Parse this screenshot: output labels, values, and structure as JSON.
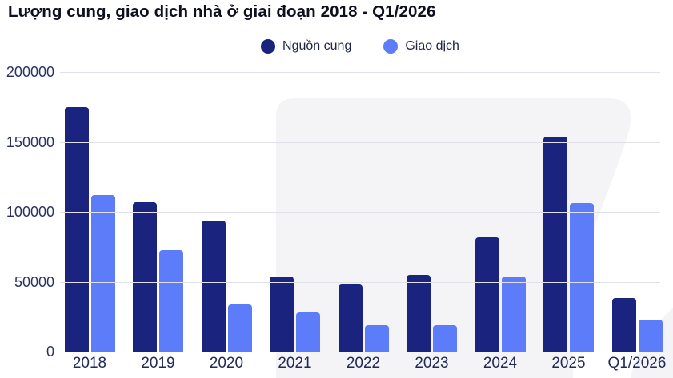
{
  "title": "Lượng cung, giao dịch nhà ở giai đoạn 2018 - Q1/2026",
  "legend": [
    {
      "label": "Nguồn cung",
      "color": "#1a237e"
    },
    {
      "label": "Giao dịch",
      "color": "#5c7cfa"
    }
  ],
  "colors": {
    "supply_bar": "#1a237e",
    "transactions_bar": "#5c7cfa",
    "gridline": "#e0e1e8",
    "watermark": "#f4f4f6",
    "title_text": "#0e1020",
    "axis_text": "#2b3166"
  },
  "chart_data": {
    "type": "bar",
    "title": "Lượng cung, giao dịch nhà ở giai đoạn 2018 - Q1/2026",
    "categories": [
      "2018",
      "2019",
      "2020",
      "2021",
      "2022",
      "2023",
      "2024",
      "2025",
      "Q1/2026"
    ],
    "series": [
      {
        "name": "Nguồn cung",
        "color": "#1a237e",
        "values": [
          175000,
          107000,
          94000,
          54000,
          48000,
          55000,
          81500,
          154000,
          38500
        ]
      },
      {
        "name": "Giao dịch",
        "color": "#5c7cfa",
        "values": [
          112000,
          72500,
          34000,
          28000,
          19000,
          18600,
          54000,
          106500,
          23000
        ]
      }
    ],
    "xlabel": "",
    "ylabel": "",
    "ylim": [
      0,
      200000
    ],
    "yticks": [
      0,
      50000,
      100000,
      150000,
      200000
    ],
    "ytick_labels": [
      "0",
      "50000",
      "100000",
      "150000",
      "200000"
    ],
    "grid": "horizontal",
    "legend_position": "top-center"
  }
}
